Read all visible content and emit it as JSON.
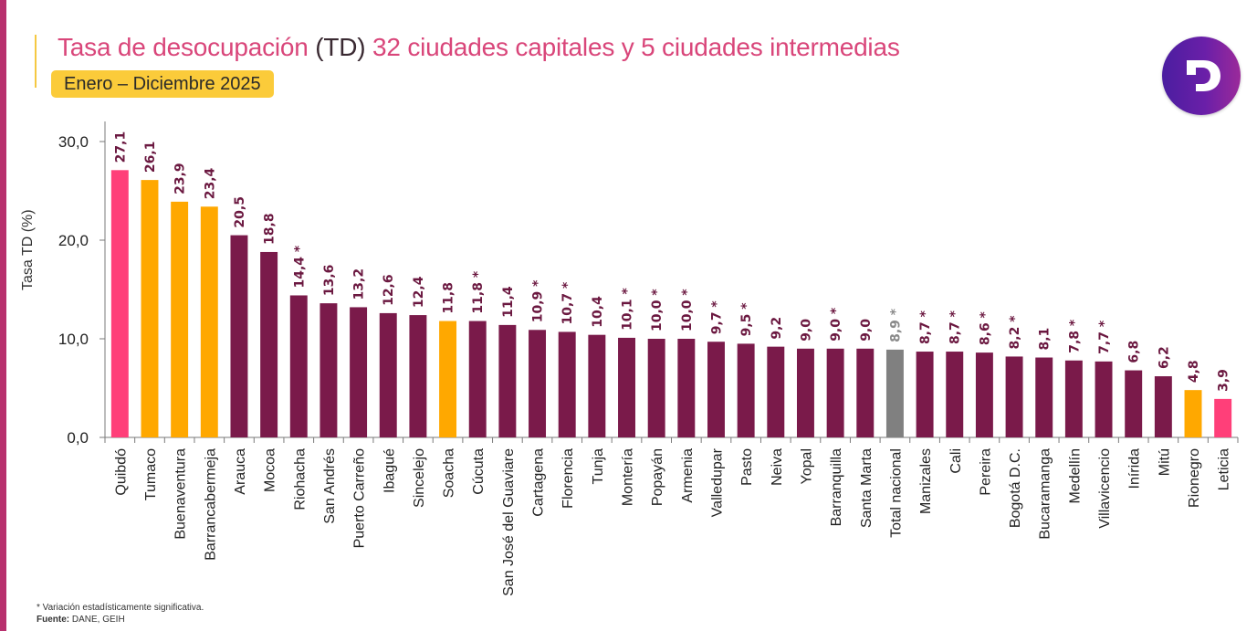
{
  "header": {
    "title_part1": "Tasa de desocupación",
    "title_part2": "(TD)",
    "title_part3": "32 ciudades capitales y 5 ciudades intermedias",
    "period_badge": "Enero – Diciembre 2025",
    "logo_letter": "D"
  },
  "colors": {
    "title": "#d9467a",
    "badge": "#fbcb3a",
    "accent_border": "#b8306e",
    "bar_default": "#7a1a4a",
    "bar_highlight_pink": "#ff3f79",
    "bar_intermediate_orange": "#ffa800",
    "bar_total": "#808080",
    "label_text": "#6b1840"
  },
  "footnote": {
    "significance": "* Variación estadísticamente significativa.",
    "source_label": "Fuente:",
    "source_value": "DANE, GEIH"
  },
  "chart_data": {
    "type": "bar",
    "title": "Tasa de desocupación (TD) 32 ciudades capitales y 5 ciudades intermedias",
    "subtitle": "Enero – Diciembre 2025",
    "xlabel": "",
    "ylabel": "Tasa TD (%)",
    "ylim": [
      0,
      30
    ],
    "yticks": [
      "0,0",
      "10,0",
      "20,0",
      "30,0"
    ],
    "ytick_values": [
      0,
      10,
      20,
      30
    ],
    "grid": false,
    "legend": "none",
    "categories": [
      "Quibdó",
      "Tumaco",
      "Buenaventura",
      "Barrancabermeja",
      "Arauca",
      "Mocoa",
      "Riohacha",
      "San Andrés",
      "Puerto Carreño",
      "Ibagué",
      "Sincelejo",
      "Soacha",
      "Cúcuta",
      "San José del Guaviare",
      "Cartagena",
      "Florencia",
      "Tunja",
      "Montería",
      "Popayán",
      "Armenia",
      "Valledupar",
      "Pasto",
      "Neiva",
      "Yopal",
      "Barranquilla",
      "Santa Marta",
      "Total nacional",
      "Manizales",
      "Cali",
      "Pereira",
      "Bogotá D.C.",
      "Bucaramanga",
      "Medellín",
      "Villavicencio",
      "Inírida",
      "Mitú",
      "Rionegro",
      "Leticia"
    ],
    "values": [
      27.1,
      26.1,
      23.9,
      23.4,
      20.5,
      18.8,
      14.4,
      13.6,
      13.2,
      12.6,
      12.4,
      11.8,
      11.8,
      11.4,
      10.9,
      10.7,
      10.4,
      10.1,
      10.0,
      10.0,
      9.7,
      9.5,
      9.2,
      9.0,
      9.0,
      9.0,
      8.9,
      8.7,
      8.7,
      8.6,
      8.2,
      8.1,
      7.8,
      7.7,
      6.8,
      6.2,
      4.8,
      3.9
    ],
    "labels": [
      "27,1",
      "26,1",
      "23,9",
      "23,4",
      "20,5",
      "18,8",
      "14,4 *",
      "13,6",
      "13,2",
      "12,6",
      "12,4",
      "11,8",
      "11,8 *",
      "11,4",
      "10,9 *",
      "10,7 *",
      "10,4",
      "10,1 *",
      "10,0 *",
      "10,0 *",
      "9,7 *",
      "9,5 *",
      "9,2",
      "9,0",
      "9,0 *",
      "9,0",
      "8,9 *",
      "8,7 *",
      "8,7 *",
      "8,6 *",
      "8,2 *",
      "8,1",
      "7,8 *",
      "7,7 *",
      "6,8",
      "6,2",
      "4,8",
      "3,9"
    ],
    "significant": [
      false,
      false,
      false,
      false,
      false,
      false,
      true,
      false,
      false,
      false,
      false,
      false,
      true,
      false,
      true,
      true,
      false,
      true,
      true,
      true,
      true,
      true,
      false,
      false,
      true,
      false,
      true,
      true,
      true,
      true,
      true,
      false,
      true,
      true,
      false,
      false,
      false,
      false
    ],
    "bar_type": [
      "pink",
      "orange",
      "orange",
      "orange",
      "default",
      "default",
      "default",
      "default",
      "default",
      "default",
      "default",
      "orange",
      "default",
      "default",
      "default",
      "default",
      "default",
      "default",
      "default",
      "default",
      "default",
      "default",
      "default",
      "default",
      "default",
      "default",
      "total",
      "default",
      "default",
      "default",
      "default",
      "default",
      "default",
      "default",
      "default",
      "default",
      "orange",
      "pink"
    ]
  }
}
